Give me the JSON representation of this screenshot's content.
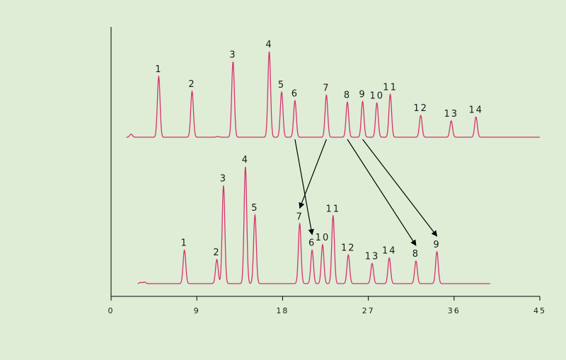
{
  "colors": {
    "background": "#dfedd6",
    "trace": "#d6336c",
    "axis": "#000000",
    "arrow": "#000000"
  },
  "chart_data": {
    "type": "line",
    "title": "",
    "xlabel": "",
    "ylabel": "",
    "xlim": [
      0,
      45
    ],
    "x_ticks": [
      0,
      9,
      18,
      27,
      36,
      45
    ],
    "x_tick_labels": [
      "0",
      "9",
      "18",
      "27",
      "36",
      "45"
    ],
    "grid": false,
    "legend": "none",
    "series": [
      {
        "trace_range": [
          1.6,
          45
        ],
        "peaks": [
          {
            "label": "1",
            "x": 5.0,
            "height": 0.78
          },
          {
            "label": "2",
            "x": 8.5,
            "height": 0.59
          },
          {
            "label": "3",
            "x": 12.8,
            "height": 0.97
          },
          {
            "label": "4",
            "x": 16.6,
            "height": 1.1
          },
          {
            "label": "5",
            "x": 17.9,
            "height": 0.58
          },
          {
            "label": "6",
            "x": 19.3,
            "height": 0.47
          },
          {
            "label": "7",
            "x": 22.6,
            "height": 0.54
          },
          {
            "label": "8",
            "x": 24.8,
            "height": 0.45
          },
          {
            "label": "9",
            "x": 26.4,
            "height": 0.46
          },
          {
            "label": "10",
            "x": 27.9,
            "height": 0.44
          },
          {
            "label": "11",
            "x": 29.3,
            "height": 0.55
          },
          {
            "label": "12",
            "x": 32.5,
            "height": 0.28
          },
          {
            "label": "13",
            "x": 35.7,
            "height": 0.21
          },
          {
            "label": "14",
            "x": 38.3,
            "height": 0.26
          }
        ],
        "noise_peaks": [
          {
            "x": 2.1,
            "height": 0.04
          },
          {
            "x": 11.2,
            "height": 0.01
          }
        ]
      },
      {
        "trace_range": [
          2.8,
          39.8
        ],
        "peaks": [
          {
            "label": "1",
            "x": 7.7,
            "height": 0.43
          },
          {
            "label": "2",
            "x": 11.1,
            "height": 0.31
          },
          {
            "label": "3",
            "x": 11.8,
            "height": 1.26
          },
          {
            "label": "4",
            "x": 14.1,
            "height": 1.5
          },
          {
            "label": "5",
            "x": 15.1,
            "height": 0.88
          },
          {
            "label": "7",
            "x": 19.8,
            "height": 0.77
          },
          {
            "label": "6",
            "x": 21.1,
            "height": 0.43
          },
          {
            "label": "10",
            "x": 22.2,
            "height": 0.5
          },
          {
            "label": "11",
            "x": 23.3,
            "height": 0.87
          },
          {
            "label": "12",
            "x": 24.9,
            "height": 0.37
          },
          {
            "label": "13",
            "x": 27.4,
            "height": 0.26
          },
          {
            "label": "14",
            "x": 29.2,
            "height": 0.33
          },
          {
            "label": "8",
            "x": 32.0,
            "height": 0.29
          },
          {
            "label": "9",
            "x": 34.2,
            "height": 0.41
          }
        ],
        "noise_peaks": [
          {
            "x": 3.1,
            "height": 0.015
          },
          {
            "x": 3.5,
            "height": 0.02
          }
        ]
      }
    ],
    "arrows": [
      {
        "from_peak": "6",
        "to_peak": "6"
      },
      {
        "from_peak": "7",
        "to_peak": "7"
      },
      {
        "from_peak": "8",
        "to_peak": "8"
      },
      {
        "from_peak": "9",
        "to_peak": "9"
      }
    ]
  }
}
